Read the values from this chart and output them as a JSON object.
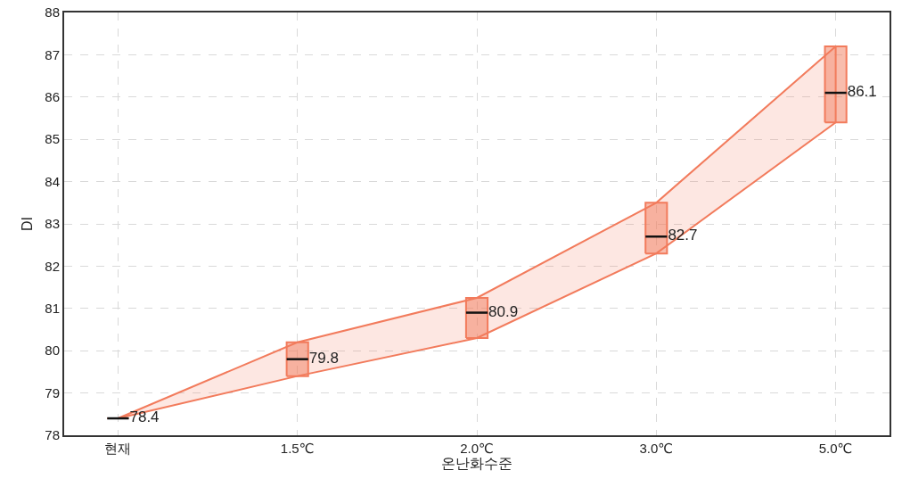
{
  "chart_data": {
    "type": "box",
    "xlabel": "온난화수준",
    "ylabel": "DI",
    "categories": [
      "현재",
      "1.5℃",
      "2.0℃",
      "3.0℃",
      "5.0℃"
    ],
    "series": [
      {
        "color": "#f27b5c",
        "boxes": [
          {
            "low": 78.4,
            "q1": 78.4,
            "median": 78.4,
            "q3": 78.4,
            "high": 78.4
          },
          {
            "low": 79.4,
            "q1": 79.4,
            "median": 79.8,
            "q3": 80.2,
            "high": 80.2
          },
          {
            "low": 80.3,
            "q1": 80.3,
            "median": 80.9,
            "q3": 81.25,
            "high": 81.25
          },
          {
            "low": 82.3,
            "q1": 82.3,
            "median": 82.7,
            "q3": 83.5,
            "high": 83.5
          },
          {
            "low": 85.4,
            "q1": 85.4,
            "median": 86.1,
            "q3": 87.2,
            "high": 87.2
          }
        ],
        "value_labels": [
          "78.4",
          "79.8",
          "80.9",
          "82.7",
          "86.1"
        ]
      },
      {
        "type": "area",
        "color": "#f27b5c",
        "values": [
          null,
          null,
          null,
          null,
          null
        ],
        "lower": [
          78.4,
          79.4,
          80.3,
          82.3,
          85.4
        ],
        "upper": [
          78.4,
          80.2,
          81.25,
          83.5,
          87.2
        ]
      }
    ],
    "grid": true,
    "ylim": [
      78,
      88
    ],
    "yticks": [
      78,
      79,
      80,
      81,
      82,
      83,
      84,
      85,
      86,
      87,
      88
    ]
  }
}
